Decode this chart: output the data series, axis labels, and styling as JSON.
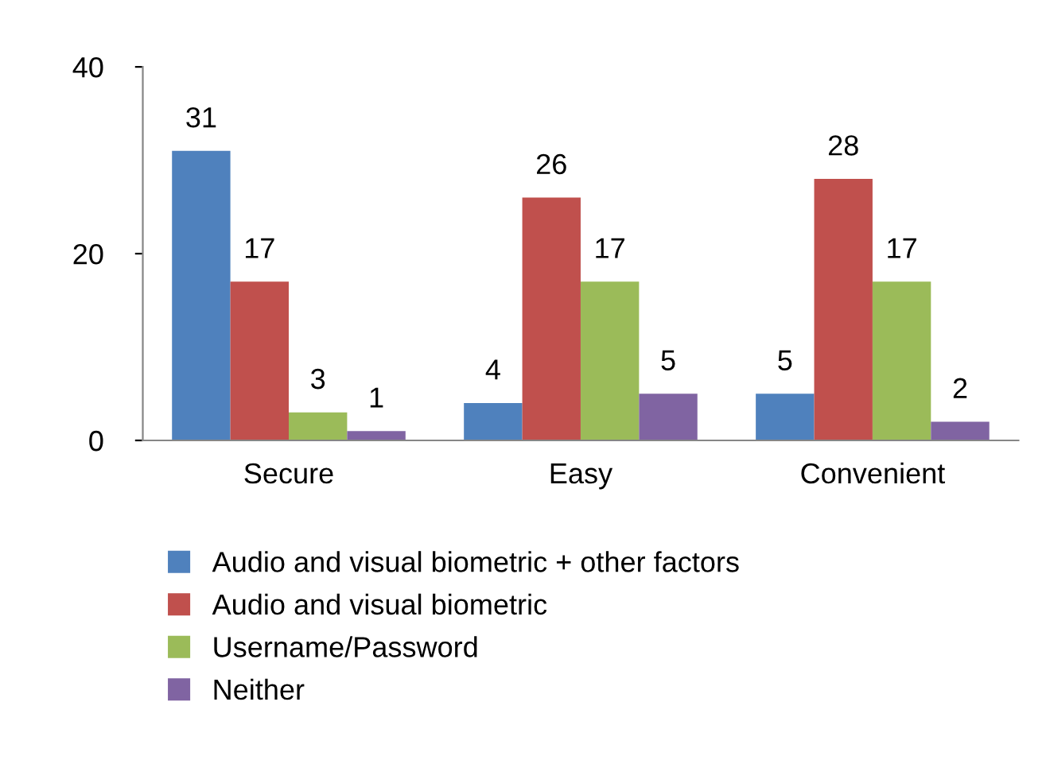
{
  "chart_data": {
    "type": "bar",
    "categories": [
      "Secure",
      "Easy",
      "Convenient"
    ],
    "series": [
      {
        "name": "Audio and visual biometric + other factors",
        "color": "#4f81bd",
        "values": [
          31,
          4,
          5
        ]
      },
      {
        "name": "Audio and visual biometric",
        "color": "#c0504d",
        "values": [
          17,
          26,
          28
        ]
      },
      {
        "name": "Username/Password",
        "color": "#9bbb59",
        "values": [
          3,
          17,
          17
        ]
      },
      {
        "name": "Neither",
        "color": "#8064a2",
        "values": [
          1,
          5,
          2
        ]
      }
    ],
    "ylim": [
      0,
      40
    ],
    "yticks": [
      0,
      20,
      40
    ],
    "grid": false,
    "legend": "bottom",
    "data_labels": true
  }
}
